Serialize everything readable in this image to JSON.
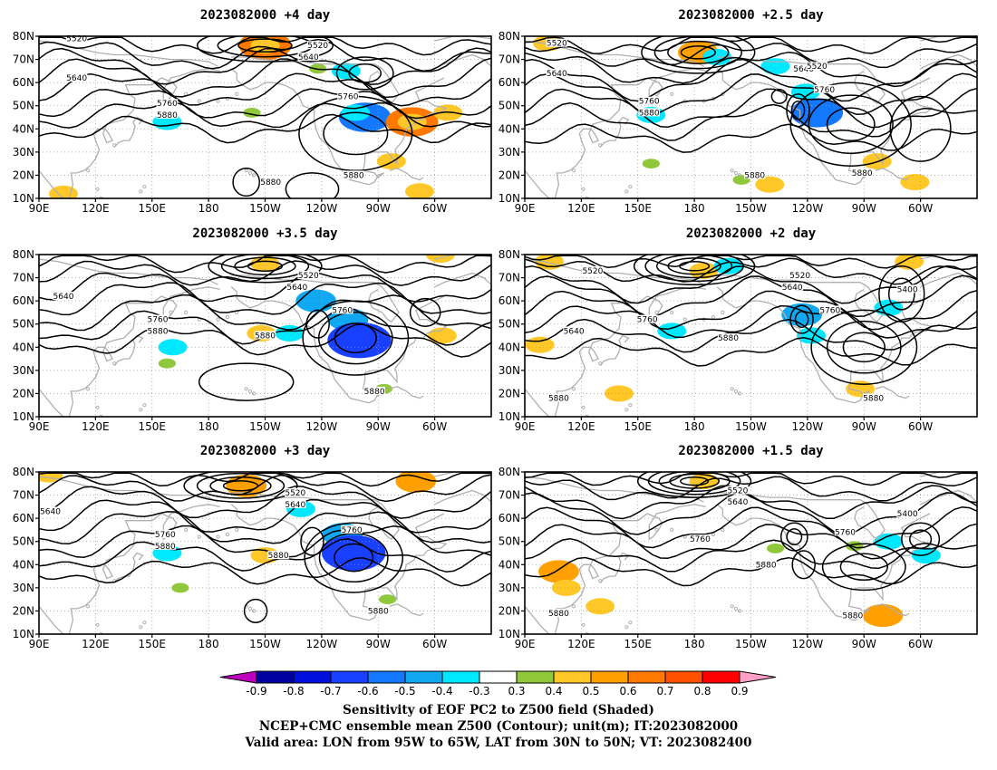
{
  "colors": {
    "land": "#b0b0b0",
    "contour": "#000000",
    "grid": "#a0a0a0",
    "scale": [
      "#c000c0",
      "#0000a0",
      "#0010dc",
      "#1a40ff",
      "#1478ff",
      "#10a8f0",
      "#00e8ff",
      "#ffffff",
      "#90c83c",
      "#ffc828",
      "#ffa000",
      "#ff7800",
      "#ff5000",
      "#ff0000",
      "#ffa0c8"
    ]
  },
  "panels": [
    {
      "id": "p1",
      "title": "2023082000 +4 day",
      "contour_labels": [
        "5520",
        "5640",
        "5520",
        "5640",
        "5760",
        "5880",
        "5760",
        "5880",
        "5880"
      ],
      "shading": [
        {
          "lon": -150,
          "lat": 76,
          "sign": "pos",
          "value": 0.6
        },
        {
          "lon": -150,
          "lat": 76,
          "sign": "pos",
          "value": 0.4
        },
        {
          "lon": -107,
          "lat": 65,
          "sign": "neg",
          "value": -0.4
        },
        {
          "lon": -97,
          "lat": 45,
          "sign": "neg",
          "value": -0.6
        },
        {
          "lon": -102,
          "lat": 47,
          "sign": "neg",
          "value": -0.4
        },
        {
          "lon": -72,
          "lat": 43,
          "sign": "pos",
          "value": 0.6
        },
        {
          "lon": -72,
          "lat": 43,
          "sign": "pos",
          "value": 0.4
        },
        {
          "lon": -157,
          "lat": 47,
          "sign": "pos",
          "value": 0.3
        },
        {
          "lon": -127,
          "lat": 49,
          "sign": "neg",
          "value": -0.3
        },
        {
          "lon": 158,
          "lat": 43,
          "sign": "neg",
          "value": -0.4
        },
        {
          "lon": -83,
          "lat": 26,
          "sign": "pos",
          "value": 0.4
        },
        {
          "lon": 103,
          "lat": 12,
          "sign": "pos",
          "value": 0.4
        },
        {
          "lon": -68,
          "lat": 13,
          "sign": "pos",
          "value": 0.4
        },
        {
          "lon": -122,
          "lat": 66,
          "sign": "pos",
          "value": 0.3
        },
        {
          "lon": -53,
          "lat": 47,
          "sign": "pos",
          "value": 0.4
        }
      ]
    },
    {
      "id": "p2",
      "title": "2023082000 +2.5 day",
      "contour_labels": [
        "5520",
        "5640",
        "5520",
        "5640",
        "5760",
        "5880",
        "5760",
        "5880",
        "5880"
      ],
      "shading": [
        {
          "lon": 102,
          "lat": 77,
          "sign": "pos",
          "value": 0.4
        },
        {
          "lon": -178,
          "lat": 73,
          "sign": "pos",
          "value": 0.5
        },
        {
          "lon": -168,
          "lat": 71,
          "sign": "neg",
          "value": -0.4
        },
        {
          "lon": -137,
          "lat": 67,
          "sign": "neg",
          "value": -0.4
        },
        {
          "lon": -121,
          "lat": 56,
          "sign": "neg",
          "value": -0.4
        },
        {
          "lon": -115,
          "lat": 47,
          "sign": "neg",
          "value": -0.6
        },
        {
          "lon": 157,
          "lat": 46,
          "sign": "neg",
          "value": -0.4
        },
        {
          "lon": -137,
          "lat": 53,
          "sign": "neg",
          "value": -0.3
        },
        {
          "lon": -83,
          "lat": 26,
          "sign": "pos",
          "value": 0.4
        },
        {
          "lon": -63,
          "lat": 17,
          "sign": "pos",
          "value": 0.4
        },
        {
          "lon": -140,
          "lat": 16,
          "sign": "pos",
          "value": 0.4
        },
        {
          "lon": -155,
          "lat": 18,
          "sign": "pos",
          "value": 0.3
        },
        {
          "lon": 157,
          "lat": 25,
          "sign": "pos",
          "value": 0.3
        }
      ]
    },
    {
      "id": "p3",
      "title": "2023082000 +3.5 day",
      "contour_labels": [
        "5520",
        "5640",
        "5640",
        "5760",
        "5880",
        "5880",
        "5760",
        "5880"
      ],
      "shading": [
        {
          "lon": -150,
          "lat": 76,
          "sign": "pos",
          "value": 0.4
        },
        {
          "lon": -123,
          "lat": 60,
          "sign": "neg",
          "value": -0.5
        },
        {
          "lon": -106,
          "lat": 52,
          "sign": "neg",
          "value": -0.5
        },
        {
          "lon": -100,
          "lat": 43,
          "sign": "neg",
          "value": -0.7
        },
        {
          "lon": -137,
          "lat": 46,
          "sign": "neg",
          "value": -0.4
        },
        {
          "lon": 161,
          "lat": 40,
          "sign": "neg",
          "value": -0.4
        },
        {
          "lon": -152,
          "lat": 46,
          "sign": "pos",
          "value": 0.4
        },
        {
          "lon": -56,
          "lat": 45,
          "sign": "pos",
          "value": 0.4
        },
        {
          "lon": 158,
          "lat": 33,
          "sign": "pos",
          "value": 0.3
        },
        {
          "lon": -87,
          "lat": 22,
          "sign": "pos",
          "value": 0.3
        },
        {
          "lon": -57,
          "lat": 80,
          "sign": "pos",
          "value": 0.4
        }
      ]
    },
    {
      "id": "p4",
      "title": "2023082000 +2 day",
      "contour_labels": [
        "5520",
        "5520",
        "5640",
        "5400",
        "5760",
        "5640",
        "5760",
        "5880",
        "5880",
        "5880"
      ],
      "shading": [
        {
          "lon": 103,
          "lat": 77,
          "sign": "pos",
          "value": 0.4
        },
        {
          "lon": -175,
          "lat": 73,
          "sign": "pos",
          "value": 0.4
        },
        {
          "lon": -162,
          "lat": 75,
          "sign": "neg",
          "value": -0.4
        },
        {
          "lon": -123,
          "lat": 54,
          "sign": "neg",
          "value": -0.5
        },
        {
          "lon": -118,
          "lat": 45,
          "sign": "neg",
          "value": -0.4
        },
        {
          "lon": 98,
          "lat": 41,
          "sign": "pos",
          "value": 0.4
        },
        {
          "lon": 168,
          "lat": 47,
          "sign": "neg",
          "value": -0.4
        },
        {
          "lon": -77,
          "lat": 57,
          "sign": "neg",
          "value": -0.4
        },
        {
          "lon": -92,
          "lat": 22,
          "sign": "pos",
          "value": 0.4
        },
        {
          "lon": 140,
          "lat": 20,
          "sign": "pos",
          "value": 0.4
        },
        {
          "lon": -66,
          "lat": 77,
          "sign": "pos",
          "value": 0.4
        }
      ]
    },
    {
      "id": "p5",
      "title": "2023082000 +3 day",
      "contour_labels": [
        "5520",
        "5640",
        "5640",
        "5760",
        "5880",
        "5760",
        "5880",
        "5880"
      ],
      "shading": [
        {
          "lon": -160,
          "lat": 74,
          "sign": "pos",
          "value": 0.5
        },
        {
          "lon": -131,
          "lat": 64,
          "sign": "neg",
          "value": -0.4
        },
        {
          "lon": -109,
          "lat": 53,
          "sign": "neg",
          "value": -0.5
        },
        {
          "lon": -103,
          "lat": 45,
          "sign": "neg",
          "value": -0.7
        },
        {
          "lon": 158,
          "lat": 45,
          "sign": "neg",
          "value": -0.4
        },
        {
          "lon": -70,
          "lat": 76,
          "sign": "pos",
          "value": 0.5
        },
        {
          "lon": 95,
          "lat": 79,
          "sign": "pos",
          "value": 0.4
        },
        {
          "lon": -85,
          "lat": 25,
          "sign": "pos",
          "value": 0.3
        },
        {
          "lon": 165,
          "lat": 30,
          "sign": "pos",
          "value": 0.3
        },
        {
          "lon": -150,
          "lat": 44,
          "sign": "pos",
          "value": 0.4
        }
      ]
    },
    {
      "id": "p6",
      "title": "2023082000 +1.5 day",
      "contour_labels": [
        "5520",
        "5640",
        "5400",
        "5760",
        "5760",
        "5880",
        "5880",
        "5880"
      ],
      "shading": [
        {
          "lon": -175,
          "lat": 76,
          "sign": "pos",
          "value": 0.4
        },
        {
          "lon": 108,
          "lat": 37,
          "sign": "pos",
          "value": 0.5
        },
        {
          "lon": 112,
          "lat": 30,
          "sign": "pos",
          "value": 0.4
        },
        {
          "lon": 130,
          "lat": 22,
          "sign": "pos",
          "value": 0.4
        },
        {
          "lon": -77,
          "lat": 50,
          "sign": "neg",
          "value": -0.4
        },
        {
          "lon": -57,
          "lat": 44,
          "sign": "neg",
          "value": -0.4
        },
        {
          "lon": -127,
          "lat": 42,
          "sign": "neg",
          "value": -0.3
        },
        {
          "lon": -80,
          "lat": 18,
          "sign": "pos",
          "value": 0.5
        },
        {
          "lon": -95,
          "lat": 48,
          "sign": "pos",
          "value": 0.3
        },
        {
          "lon": -137,
          "lat": 47,
          "sign": "pos",
          "value": 0.3
        }
      ]
    }
  ],
  "axes": {
    "lat_ticks": [
      "10N",
      "20N",
      "30N",
      "40N",
      "50N",
      "60N",
      "70N",
      "80N"
    ],
    "lon_ticks": [
      "90E",
      "120E",
      "150E",
      "180",
      "150W",
      "120W",
      "90W",
      "60W"
    ]
  },
  "colorbar": {
    "levels": [
      "-0.9",
      "-0.8",
      "-0.7",
      "-0.6",
      "-0.5",
      "-0.4",
      "-0.3",
      "0.3",
      "0.4",
      "0.5",
      "0.6",
      "0.7",
      "0.8",
      "0.9"
    ]
  },
  "caption": {
    "line1": "Sensitivity of EOF PC2 to Z500 field (Shaded)",
    "line2": "NCEP+CMC ensemble mean Z500 (Contour); unit(m); IT:2023082000",
    "line3": "Valid area: LON from 95W to 65W, LAT from 30N to 50N; VT: 2023082400"
  }
}
